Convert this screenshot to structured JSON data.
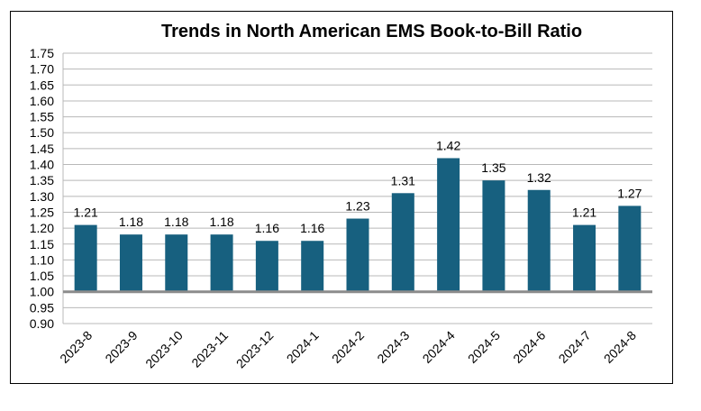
{
  "chart_data": {
    "type": "bar",
    "title": "Trends in North American EMS Book-to-Bill Ratio",
    "xlabel": "",
    "ylabel": "",
    "categories": [
      "2023-8",
      "2023-9",
      "2023-10",
      "2023-11",
      "2023-12",
      "2024-1",
      "2024-2",
      "2024-3",
      "2024-4",
      "2024-5",
      "2024-6",
      "2024-7",
      "2024-8"
    ],
    "values": [
      1.21,
      1.18,
      1.18,
      1.18,
      1.16,
      1.16,
      1.23,
      1.31,
      1.42,
      1.35,
      1.32,
      1.21,
      1.27
    ],
    "value_labels": [
      "1.21",
      "1.18",
      "1.18",
      "1.18",
      "1.16",
      "1.16",
      "1.23",
      "1.31",
      "1.42",
      "1.35",
      "1.32",
      "1.21",
      "1.27"
    ],
    "ylim": [
      0.9,
      1.75
    ],
    "baseline": 1.0,
    "yticks": [
      "0.90",
      "0.95",
      "1.00",
      "1.05",
      "1.10",
      "1.15",
      "1.20",
      "1.25",
      "1.30",
      "1.35",
      "1.40",
      "1.45",
      "1.50",
      "1.55",
      "1.60",
      "1.65",
      "1.70",
      "1.75"
    ],
    "grid": true,
    "legend": "none",
    "colors": {
      "bar": "#17607F",
      "grid": "#B8B8B8",
      "baseline": "#8C8C8C"
    }
  }
}
